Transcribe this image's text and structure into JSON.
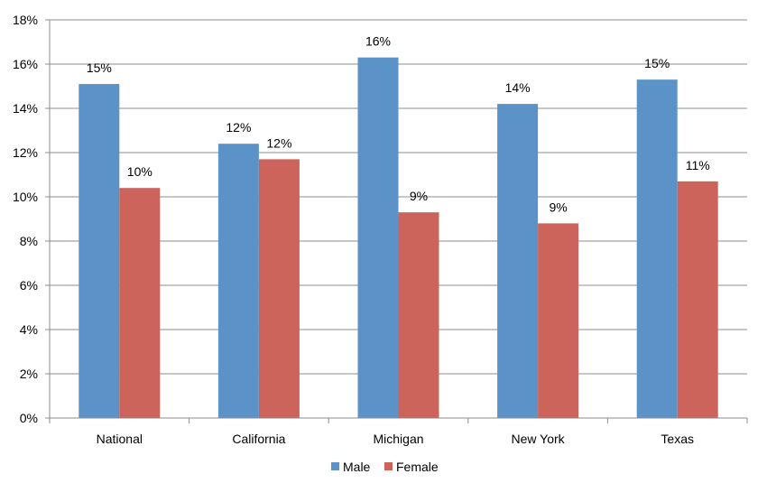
{
  "chart_data": {
    "type": "bar",
    "categories": [
      "National",
      "California",
      "Michigan",
      "New York",
      "Texas"
    ],
    "series": [
      {
        "name": "Male",
        "color": "#5b93c9",
        "values": [
          15.1,
          12.4,
          16.3,
          14.2,
          15.3
        ],
        "labels": [
          "15%",
          "12%",
          "16%",
          "14%",
          "15%"
        ]
      },
      {
        "name": "Female",
        "color": "#cc645c",
        "values": [
          10.4,
          11.7,
          9.3,
          8.8,
          10.7
        ],
        "labels": [
          "10%",
          "12%",
          "9%",
          "9%",
          "11%"
        ]
      }
    ],
    "ylim": [
      0,
      18
    ],
    "ytick_step": 2,
    "ytick_labels": [
      "0%",
      "2%",
      "4%",
      "6%",
      "8%",
      "10%",
      "12%",
      "14%",
      "16%",
      "18%"
    ],
    "grid": true,
    "legend_position": "bottom",
    "title": "",
    "xlabel": "",
    "ylabel": ""
  }
}
